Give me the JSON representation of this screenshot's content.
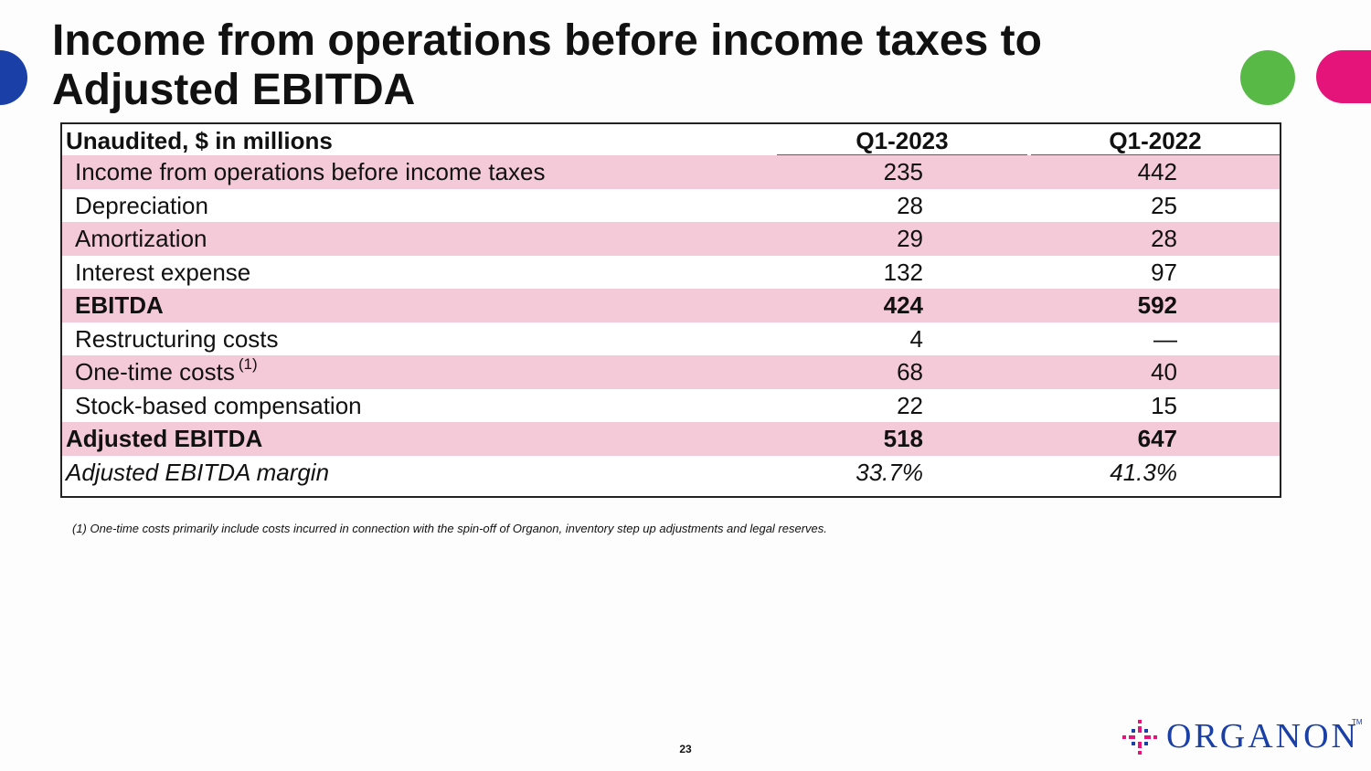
{
  "slide": {
    "title_line1": "Income from operations before income taxes to",
    "title_line2": "Adjusted EBITDA",
    "page_number": "23",
    "footnote": "(1) One-time costs primarily include costs incurred in connection with the spin-off of Organon, inventory step up adjustments and legal reserves."
  },
  "table": {
    "header": {
      "label": "Unaudited, $ in millions",
      "col1": "Q1-2023",
      "col2": "Q1-2022"
    },
    "rows": [
      {
        "label": "Income from operations before income taxes",
        "note": "",
        "q1_2023": "235",
        "q1_2022": "442"
      },
      {
        "label": "Depreciation",
        "note": "",
        "q1_2023": "28",
        "q1_2022": "25"
      },
      {
        "label": "Amortization",
        "note": "",
        "q1_2023": "29",
        "q1_2022": "28"
      },
      {
        "label": "Interest expense",
        "note": "",
        "q1_2023": "132",
        "q1_2022": "97"
      },
      {
        "label": "EBITDA",
        "note": "",
        "q1_2023": "424",
        "q1_2022": "592"
      },
      {
        "label": "Restructuring costs",
        "note": "",
        "q1_2023": "4",
        "q1_2022": "—"
      },
      {
        "label": "One-time costs",
        "note": "(1)",
        "q1_2023": "68",
        "q1_2022": "40"
      },
      {
        "label": "Stock-based compensation",
        "note": "",
        "q1_2023": "22",
        "q1_2022": "15"
      },
      {
        "label": "Adjusted EBITDA",
        "note": "",
        "q1_2023": "518",
        "q1_2022": "647"
      },
      {
        "label": "Adjusted EBITDA margin",
        "note": "",
        "q1_2023": "33.7%",
        "q1_2022": "41.3%"
      }
    ]
  },
  "logo": {
    "text": "ORGANON",
    "tm": "TM"
  },
  "colors": {
    "brand_blue": "#1a3fa6",
    "brand_pink": "#e4147a",
    "brand_green": "#58b947",
    "row_pink": "#f5cad8"
  }
}
